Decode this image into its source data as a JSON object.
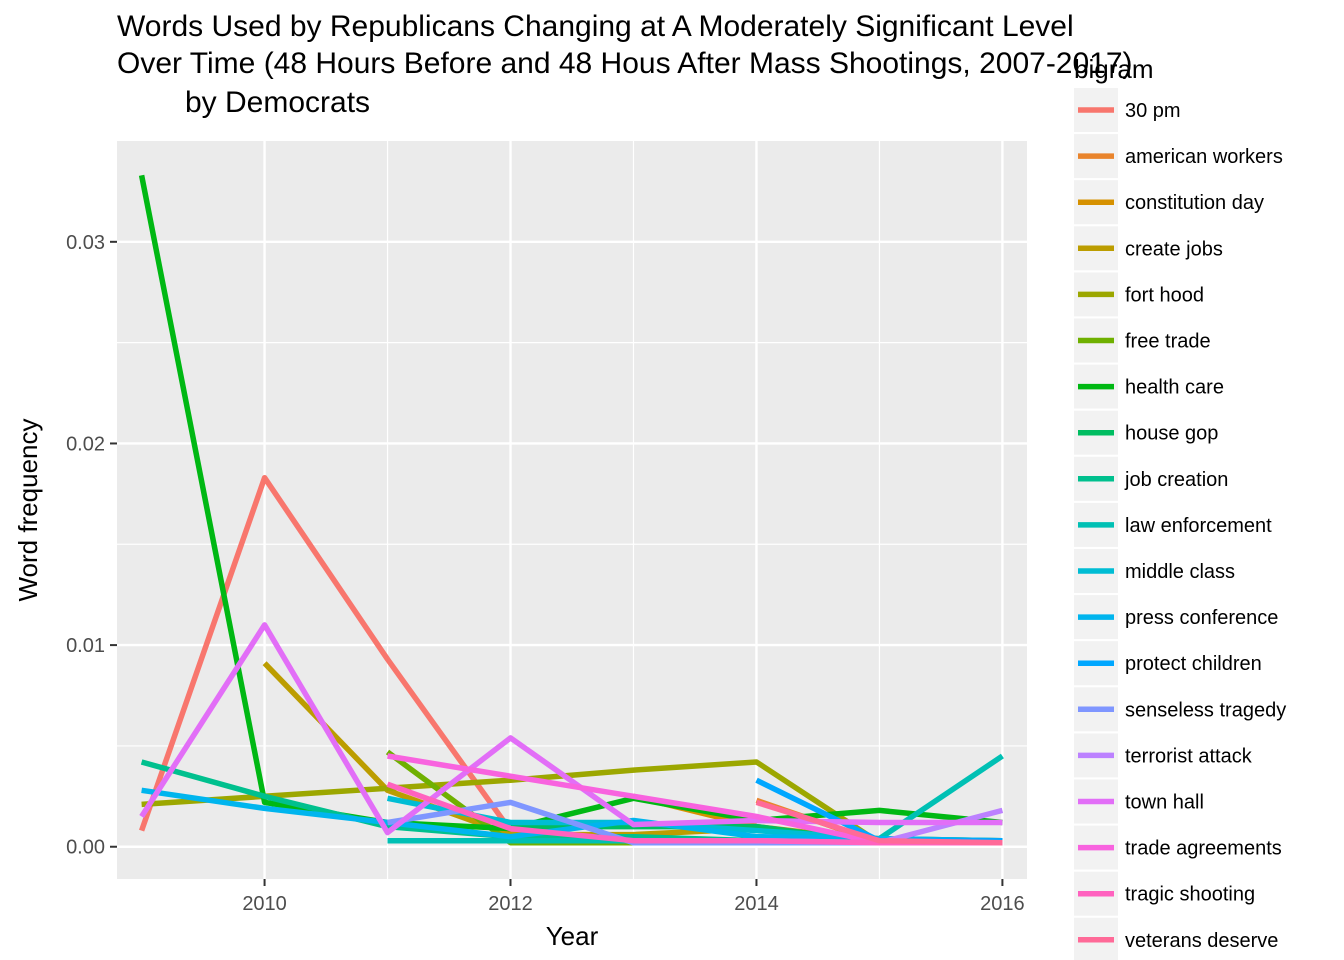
{
  "chart_data": {
    "type": "line",
    "title": "Words Used by Republicans Changing at A Moderately Significant Level Over Time (48 Hours Before and 48 Hous After Mass Shootings, 2007-2017)",
    "subtitle": "by Democrats",
    "xlabel": "Year",
    "ylabel": "Word frequency",
    "xlim": [
      2008.8,
      2016.2
    ],
    "ylim": [
      -0.0016,
      0.035
    ],
    "xticks": [
      2010,
      2012,
      2014,
      2016
    ],
    "yticks": [
      0.0,
      0.01,
      0.02,
      0.03
    ],
    "ytick_labels": [
      "0.00",
      "0.01",
      "0.02",
      "0.03"
    ],
    "grid": true,
    "legend_title": "bigram",
    "legend_position": "right",
    "series": [
      {
        "name": "30 pm",
        "color": "#F8766D",
        "points": [
          [
            2009,
            0.0008
          ],
          [
            2010,
            0.0183
          ],
          [
            2011,
            0.0093
          ],
          [
            2012,
            0.0008
          ],
          [
            2013,
            0.0003
          ],
          [
            2014,
            0.0003
          ],
          [
            2015,
            0.0002
          ],
          [
            2016,
            0.0002
          ]
        ]
      },
      {
        "name": "american workers",
        "color": "#E9842C",
        "points": [
          [
            2014,
            0.0023
          ],
          [
            2015,
            0.0002
          ],
          [
            2016,
            0.0002
          ]
        ]
      },
      {
        "name": "constitution day",
        "color": "#D69100",
        "points": [
          [
            2013,
            0.0025
          ],
          [
            2014,
            0.001
          ],
          [
            2015,
            0.0003
          ],
          [
            2016,
            0.0003
          ]
        ]
      },
      {
        "name": "create jobs",
        "color": "#BC9D00",
        "points": [
          [
            2010,
            0.0091
          ],
          [
            2011,
            0.0028
          ],
          [
            2012,
            0.0006
          ],
          [
            2013,
            0.0006
          ],
          [
            2014,
            0.0009
          ],
          [
            2015,
            0.0004
          ],
          [
            2016,
            0.0003
          ]
        ]
      },
      {
        "name": "fort hood",
        "color": "#9CA700",
        "points": [
          [
            2009,
            0.0021
          ],
          [
            2010,
            0.0025
          ],
          [
            2011,
            0.0029
          ],
          [
            2012,
            0.0033
          ],
          [
            2013,
            0.0038
          ],
          [
            2014,
            0.0042
          ],
          [
            2015,
            0.0002
          ],
          [
            2016,
            0.0002
          ]
        ]
      },
      {
        "name": "free trade",
        "color": "#6FB000",
        "points": [
          [
            2011,
            0.0047
          ],
          [
            2012,
            0.0002
          ],
          [
            2013,
            0.0002
          ],
          [
            2014,
            0.0002
          ],
          [
            2015,
            0.0002
          ],
          [
            2016,
            0.0002
          ]
        ]
      },
      {
        "name": "health care",
        "color": "#00B813",
        "points": [
          [
            2009,
            0.0333
          ],
          [
            2010,
            0.0022
          ],
          [
            2011,
            0.0012
          ],
          [
            2012,
            0.0009
          ],
          [
            2013,
            0.0024
          ],
          [
            2014,
            0.0013
          ],
          [
            2015,
            0.0018
          ],
          [
            2016,
            0.0012
          ]
        ]
      },
      {
        "name": "house gop",
        "color": "#00BD61",
        "points": [
          [
            2012,
            0.001
          ],
          [
            2013,
            0.001
          ],
          [
            2014,
            0.001
          ],
          [
            2015,
            0.0002
          ],
          [
            2016,
            0.0002
          ]
        ]
      },
      {
        "name": "job creation",
        "color": "#00C08E",
        "points": [
          [
            2009,
            0.0042
          ],
          [
            2010,
            0.0025
          ],
          [
            2011,
            0.001
          ],
          [
            2012,
            0.0005
          ],
          [
            2013,
            0.0005
          ],
          [
            2014,
            0.0003
          ],
          [
            2015,
            0.0002
          ],
          [
            2016,
            0.0002
          ]
        ]
      },
      {
        "name": "law enforcement",
        "color": "#00C0B4",
        "points": [
          [
            2011,
            0.0003
          ],
          [
            2012,
            0.0003
          ],
          [
            2013,
            0.0003
          ],
          [
            2014,
            0.0003
          ],
          [
            2015,
            0.0004
          ],
          [
            2016,
            0.0045
          ]
        ]
      },
      {
        "name": "middle class",
        "color": "#00BDD4",
        "points": [
          [
            2011,
            0.0024
          ],
          [
            2012,
            0.0012
          ],
          [
            2013,
            0.0012
          ],
          [
            2014,
            0.0008
          ],
          [
            2015,
            0.0004
          ],
          [
            2016,
            0.0003
          ]
        ]
      },
      {
        "name": "press conference",
        "color": "#00B5EE",
        "points": [
          [
            2009,
            0.0028
          ],
          [
            2010,
            0.0019
          ],
          [
            2011,
            0.0012
          ],
          [
            2012,
            0.0005
          ],
          [
            2013,
            0.0013
          ],
          [
            2014,
            0.0005
          ],
          [
            2015,
            0.0004
          ],
          [
            2016,
            0.0003
          ]
        ]
      },
      {
        "name": "protect children",
        "color": "#00A7FF",
        "points": [
          [
            2014,
            0.0033
          ],
          [
            2015,
            0.0003
          ],
          [
            2016,
            0.0003
          ]
        ]
      },
      {
        "name": "senseless tragedy",
        "color": "#7F96FF",
        "points": [
          [
            2011,
            0.0012
          ],
          [
            2012,
            0.0022
          ],
          [
            2013,
            0.0002
          ],
          [
            2014,
            0.0002
          ],
          [
            2015,
            0.0002
          ],
          [
            2016,
            0.0002
          ]
        ]
      },
      {
        "name": "terrorist attack",
        "color": "#BC81FF",
        "points": [
          [
            2014,
            0.0003
          ],
          [
            2015,
            0.0002
          ],
          [
            2016,
            0.0018
          ]
        ]
      },
      {
        "name": "town hall",
        "color": "#E26EF7",
        "points": [
          [
            2009,
            0.0015
          ],
          [
            2010,
            0.011
          ],
          [
            2011,
            0.0007
          ],
          [
            2012,
            0.0054
          ],
          [
            2013,
            0.0011
          ],
          [
            2014,
            0.0013
          ],
          [
            2015,
            0.0012
          ],
          [
            2016,
            0.0012
          ]
        ]
      },
      {
        "name": "trade agreements",
        "color": "#F863DF",
        "points": [
          [
            2011,
            0.0045
          ],
          [
            2012,
            0.0035
          ],
          [
            2013,
            0.0025
          ],
          [
            2014,
            0.0015
          ],
          [
            2015,
            0.0002
          ],
          [
            2016,
            0.0002
          ]
        ]
      },
      {
        "name": "tragic shooting",
        "color": "#FF62BF",
        "points": [
          [
            2011,
            0.0031
          ],
          [
            2012,
            0.0009
          ],
          [
            2013,
            0.0003
          ],
          [
            2014,
            0.0003
          ],
          [
            2015,
            0.0002
          ],
          [
            2016,
            0.0002
          ]
        ]
      },
      {
        "name": "veterans deserve",
        "color": "#FF6A98",
        "points": [
          [
            2014,
            0.0022
          ],
          [
            2015,
            0.0003
          ],
          [
            2016,
            0.0002
          ]
        ]
      }
    ]
  }
}
